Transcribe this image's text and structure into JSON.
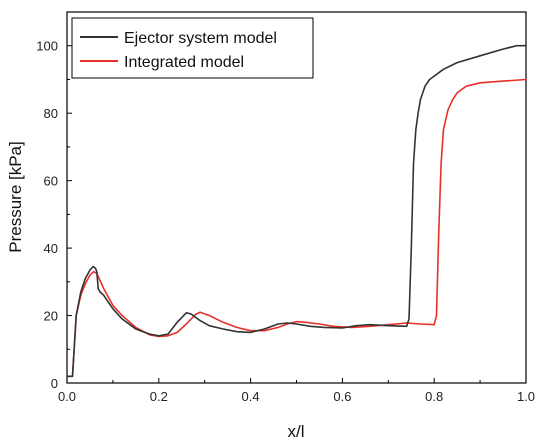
{
  "chart_data": {
    "type": "line",
    "xlabel": "x/l",
    "ylabel": "Pressure [kPa]",
    "xlim": [
      0.0,
      1.0
    ],
    "ylim": [
      0,
      110
    ],
    "x_ticks": [
      "0.0",
      "0.2",
      "0.4",
      "0.6",
      "0.8",
      "1.0"
    ],
    "y_ticks": [
      "0",
      "20",
      "40",
      "60",
      "80",
      "100"
    ],
    "grid": false,
    "legend_position": "top-left",
    "series": [
      {
        "name": "Ejector system model",
        "color": "#333333",
        "x": [
          0.0,
          0.012,
          0.02,
          0.03,
          0.04,
          0.05,
          0.057,
          0.062,
          0.065,
          0.068,
          0.072,
          0.08,
          0.09,
          0.1,
          0.12,
          0.15,
          0.18,
          0.2,
          0.22,
          0.24,
          0.26,
          0.27,
          0.29,
          0.31,
          0.34,
          0.37,
          0.4,
          0.43,
          0.46,
          0.48,
          0.5,
          0.53,
          0.56,
          0.6,
          0.63,
          0.66,
          0.7,
          0.74,
          0.745,
          0.75,
          0.755,
          0.76,
          0.765,
          0.77,
          0.78,
          0.79,
          0.8,
          0.82,
          0.85,
          0.9,
          0.95,
          0.98,
          1.0
        ],
        "y": [
          2,
          2,
          20,
          27,
          31,
          33.5,
          34.5,
          34,
          33,
          28,
          27,
          26,
          24,
          22,
          19,
          16,
          14.5,
          14,
          14.5,
          18,
          20.8,
          20.5,
          18.5,
          17,
          16,
          15.2,
          15,
          16,
          17.5,
          17.8,
          17.5,
          16.8,
          16.5,
          16.3,
          17,
          17.3,
          17,
          16.8,
          19,
          40,
          65,
          75,
          80,
          84,
          88,
          90,
          91,
          93,
          95,
          97,
          99,
          100,
          100
        ]
      },
      {
        "name": "Integrated model",
        "color": "#e8302a",
        "x": [
          0.0,
          0.012,
          0.02,
          0.03,
          0.04,
          0.05,
          0.058,
          0.065,
          0.07,
          0.08,
          0.1,
          0.12,
          0.15,
          0.18,
          0.2,
          0.22,
          0.24,
          0.26,
          0.28,
          0.29,
          0.31,
          0.34,
          0.37,
          0.4,
          0.43,
          0.46,
          0.48,
          0.5,
          0.52,
          0.55,
          0.58,
          0.62,
          0.66,
          0.7,
          0.74,
          0.77,
          0.8,
          0.805,
          0.81,
          0.815,
          0.82,
          0.83,
          0.84,
          0.85,
          0.87,
          0.9,
          0.95,
          1.0
        ],
        "y": [
          2,
          2,
          20,
          26,
          29.5,
          32,
          33,
          32.5,
          31,
          28,
          23,
          20,
          16.5,
          14.3,
          13.8,
          14,
          15,
          17.5,
          20.3,
          21,
          20,
          18,
          16.5,
          15.5,
          15.5,
          16.5,
          17.5,
          18.2,
          18,
          17.5,
          16.8,
          16.5,
          16.8,
          17.3,
          17.8,
          17.5,
          17.3,
          20,
          45,
          65,
          75,
          81,
          84,
          86,
          88,
          89,
          89.5,
          90
        ]
      }
    ]
  }
}
